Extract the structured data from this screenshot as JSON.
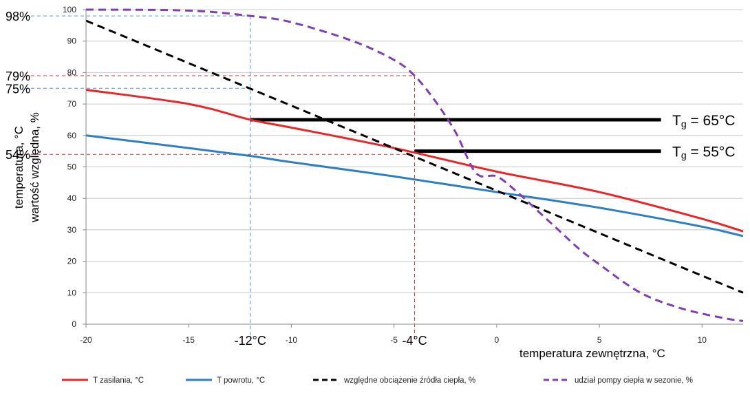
{
  "chart_data": {
    "type": "line",
    "title": "",
    "xlabel": "temperatura zewnętrzna, °C",
    "ylabel_lines": [
      "temperatura, °C",
      "wartość względna, %"
    ],
    "xlim": [
      -20,
      12
    ],
    "ylim": [
      0,
      100
    ],
    "xticks": [
      "-20",
      "-15",
      "-10",
      "-5",
      "0",
      "5",
      "10"
    ],
    "xtick_values": [
      -20,
      -15,
      -10,
      -5,
      0,
      5,
      10
    ],
    "yticks": [
      "0",
      "10",
      "20",
      "30",
      "40",
      "50",
      "60",
      "70",
      "80",
      "90",
      "100"
    ],
    "ytick_values": [
      0,
      10,
      20,
      30,
      40,
      50,
      60,
      70,
      80,
      90,
      100
    ],
    "grid": "horizontal",
    "legend_position": "bottom",
    "series": [
      {
        "name": "T zasilania, °C",
        "color": "#e8262a",
        "dash": "solid",
        "points": [
          [
            -20,
            74.5
          ],
          [
            -15,
            70
          ],
          [
            -12,
            65
          ],
          [
            -10,
            62.5
          ],
          [
            -5,
            56
          ],
          [
            0,
            48.5
          ],
          [
            5,
            42
          ],
          [
            10,
            33.5
          ],
          [
            12,
            29.5
          ]
        ]
      },
      {
        "name": "T powrotu, °C",
        "color": "#2f7ec1",
        "dash": "solid",
        "points": [
          [
            -20,
            60
          ],
          [
            -15,
            56
          ],
          [
            -12,
            53.5
          ],
          [
            -10,
            51.5
          ],
          [
            -5,
            47
          ],
          [
            0,
            42
          ],
          [
            5,
            37
          ],
          [
            10,
            31
          ],
          [
            12,
            28
          ]
        ]
      },
      {
        "name": "względne obciążenie źródła ciepła, %",
        "color": "#000000",
        "dash": "dashed",
        "points": [
          [
            -20,
            96.5
          ],
          [
            12,
            10
          ]
        ]
      },
      {
        "name": "udział pompy ciepła w sezonie, %",
        "color": "#7e3fb0",
        "dash": "dashed",
        "points": [
          [
            -20,
            100
          ],
          [
            -15,
            99.7
          ],
          [
            -12,
            98
          ],
          [
            -10,
            96
          ],
          [
            -7,
            90
          ],
          [
            -5,
            84
          ],
          [
            -4,
            79
          ],
          [
            -3,
            71
          ],
          [
            -2,
            61
          ],
          [
            -1,
            48
          ],
          [
            0,
            47
          ],
          [
            1,
            42
          ],
          [
            2,
            36
          ],
          [
            3,
            30
          ],
          [
            4,
            24
          ],
          [
            5,
            19
          ],
          [
            7,
            10
          ],
          [
            9,
            5
          ],
          [
            11,
            2
          ],
          [
            12,
            1
          ]
        ]
      }
    ],
    "horizontal_bars": [
      {
        "label_base": "T",
        "label_sub": "g",
        "label_tail": " = 65°C",
        "y": 65,
        "x_from": -12,
        "x_to": 8
      },
      {
        "label_base": "T",
        "label_sub": "g",
        "label_tail": " = 55°C",
        "y": 55,
        "x_from": -4,
        "x_to": 8
      }
    ],
    "reference_lines": [
      {
        "color": "#4a90d9",
        "x": -12,
        "y_marks": [
          75,
          98
        ]
      },
      {
        "color": "#d23a3a",
        "x": -4,
        "y_marks": [
          54,
          79
        ]
      }
    ],
    "annotations": [
      {
        "text": "98%",
        "y": 98
      },
      {
        "text": "79%",
        "y": 79
      },
      {
        "text": "75%",
        "y": 75
      },
      {
        "text": "54%",
        "y": 54
      },
      {
        "text": "-12°C",
        "x": -12
      },
      {
        "text": "-4°C",
        "x": -4
      }
    ]
  }
}
